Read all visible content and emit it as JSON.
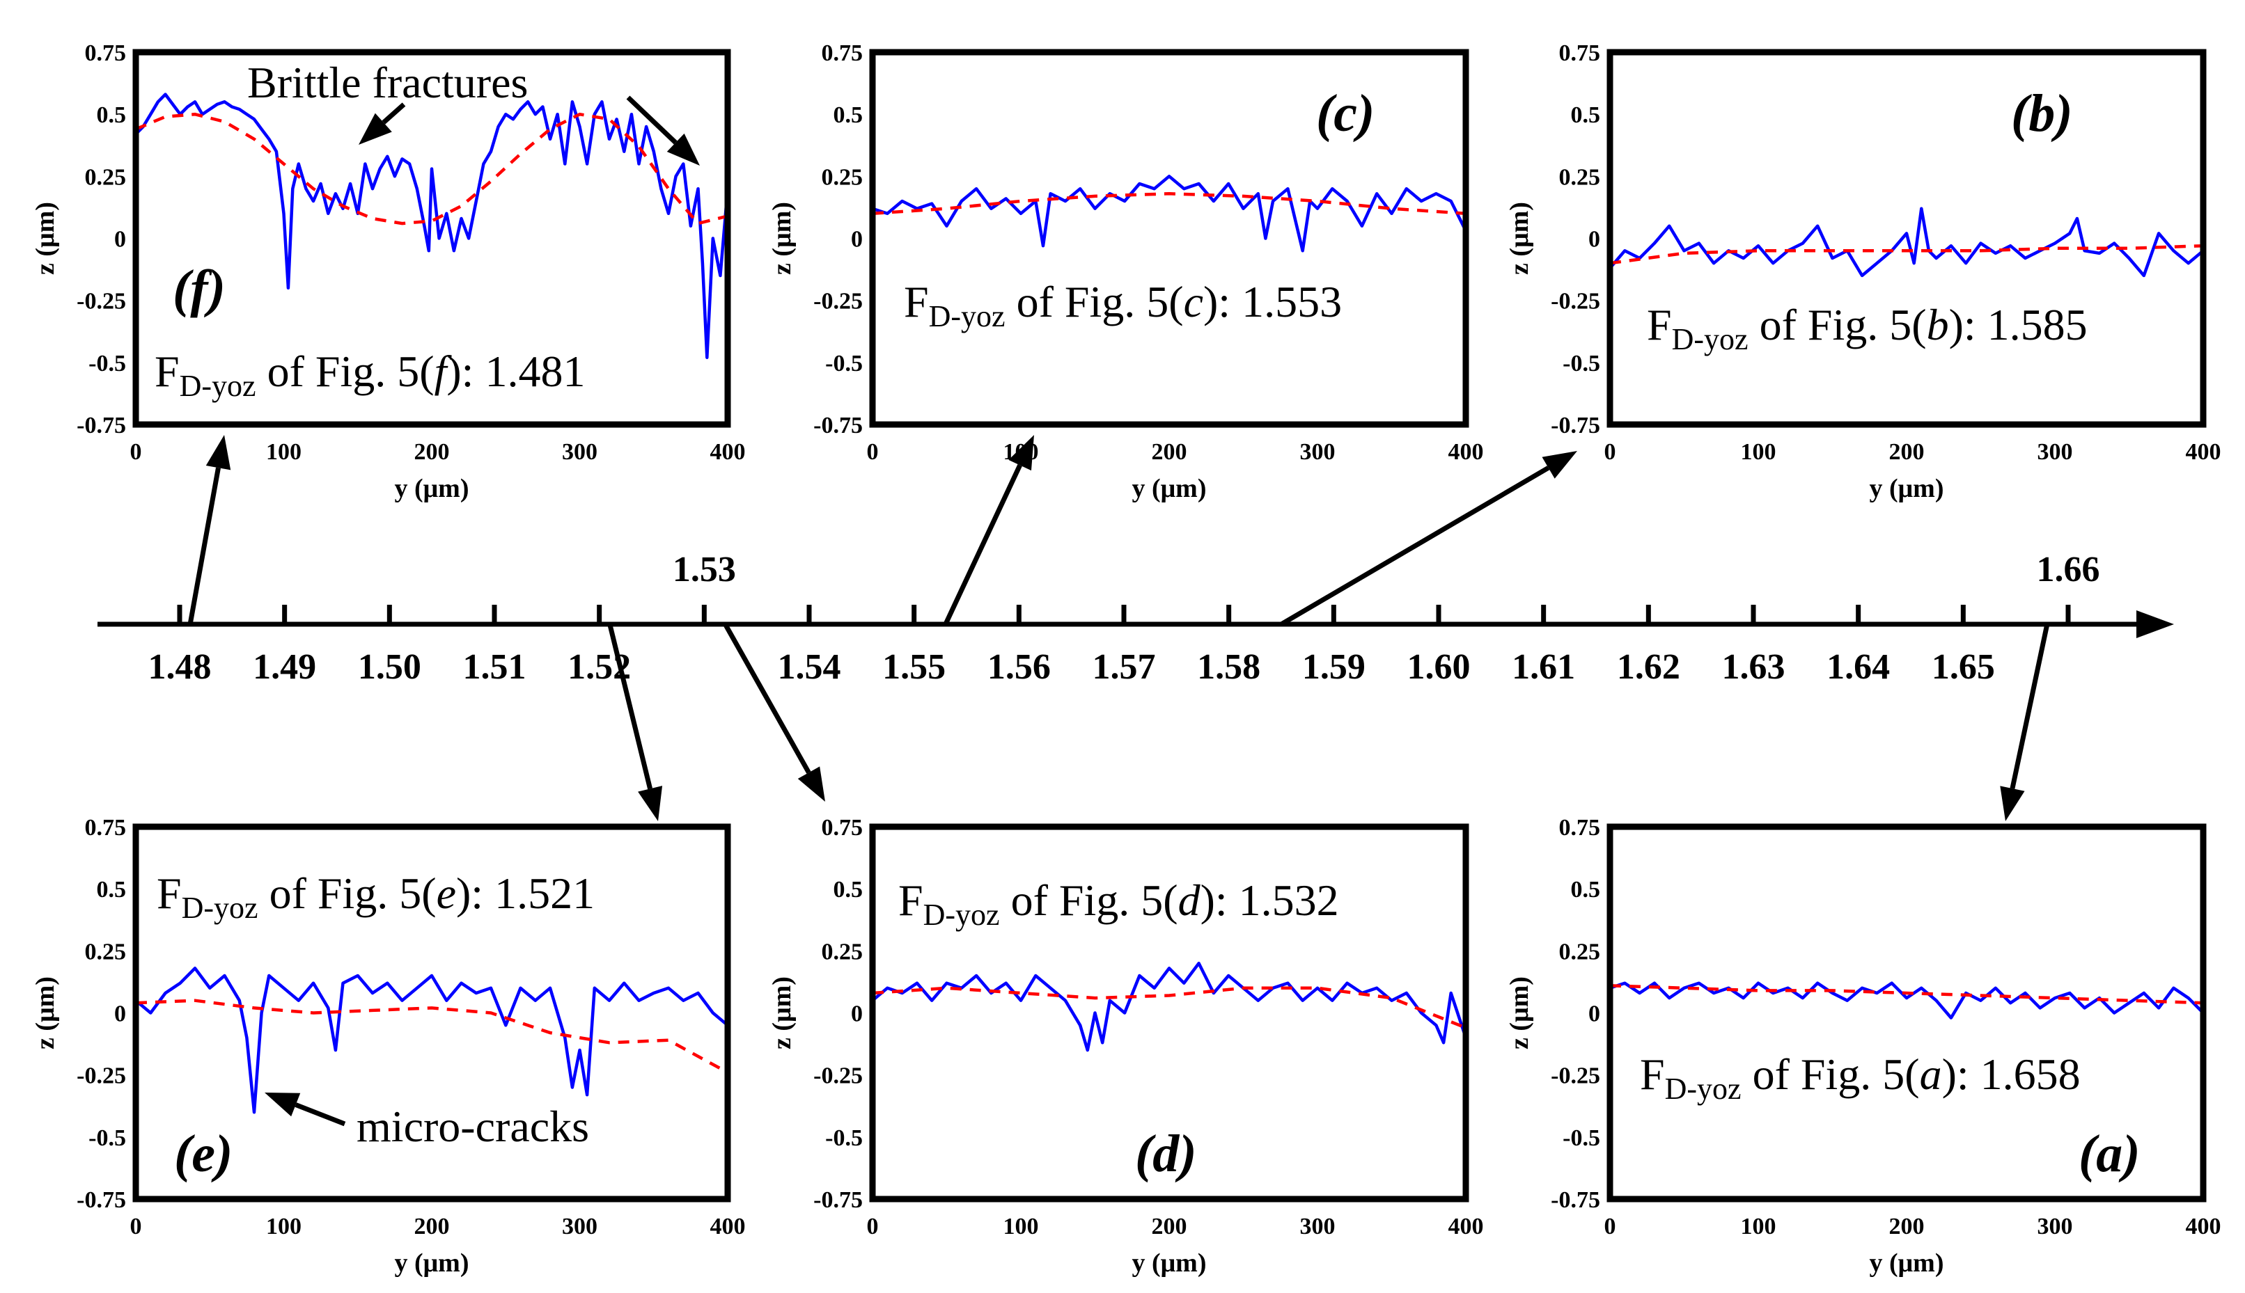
{
  "figure": {
    "colors": {
      "profile": "#0000ff",
      "fit": "#ff0000",
      "ink": "#000000"
    }
  },
  "annotations": {
    "brittle": "Brittle fractures",
    "microcracks": "micro-cracks"
  },
  "chart_data": [
    {
      "id": "f",
      "type": "line",
      "panel_letter": "(f)",
      "fd_label": {
        "sym": "F",
        "sub": "D-yoz",
        "text": " of Fig. 5(",
        "letter": "f",
        "close": "): ",
        "value": "1.481"
      },
      "xlabel": "y (μm)",
      "ylabel": "z (μm)",
      "xlim": [
        0,
        400
      ],
      "ylim": [
        -0.75,
        0.75
      ],
      "xticks": [
        "0",
        "100",
        "200",
        "300",
        "400"
      ],
      "yticks": [
        "0.75",
        "0.5",
        "0.25",
        "0",
        "-0.25",
        "-0.5",
        "-0.75"
      ],
      "series": [
        {
          "name": "profile",
          "x": [
            0,
            5,
            10,
            15,
            20,
            25,
            30,
            35,
            40,
            45,
            50,
            55,
            60,
            65,
            70,
            75,
            80,
            85,
            90,
            95,
            100,
            103,
            106,
            110,
            115,
            120,
            125,
            130,
            135,
            140,
            145,
            150,
            155,
            160,
            165,
            170,
            175,
            180,
            185,
            190,
            195,
            198,
            200,
            205,
            210,
            215,
            220,
            225,
            230,
            235,
            240,
            245,
            250,
            255,
            260,
            265,
            270,
            275,
            280,
            285,
            290,
            295,
            300,
            305,
            310,
            315,
            320,
            325,
            330,
            335,
            340,
            345,
            350,
            355,
            360,
            365,
            370,
            375,
            380,
            383,
            386,
            390,
            395,
            400
          ],
          "y": [
            0.42,
            0.45,
            0.5,
            0.55,
            0.58,
            0.54,
            0.5,
            0.53,
            0.55,
            0.5,
            0.52,
            0.54,
            0.55,
            0.53,
            0.52,
            0.5,
            0.48,
            0.44,
            0.4,
            0.35,
            0.1,
            -0.2,
            0.2,
            0.3,
            0.2,
            0.15,
            0.22,
            0.1,
            0.18,
            0.12,
            0.22,
            0.1,
            0.3,
            0.2,
            0.28,
            0.33,
            0.25,
            0.32,
            0.3,
            0.2,
            0.05,
            -0.05,
            0.28,
            0.0,
            0.1,
            -0.05,
            0.08,
            0.0,
            0.15,
            0.3,
            0.35,
            0.45,
            0.5,
            0.48,
            0.52,
            0.55,
            0.5,
            0.53,
            0.4,
            0.5,
            0.3,
            0.55,
            0.45,
            0.3,
            0.5,
            0.55,
            0.4,
            0.48,
            0.35,
            0.5,
            0.3,
            0.45,
            0.35,
            0.2,
            0.1,
            0.25,
            0.3,
            0.05,
            0.2,
            -0.1,
            -0.48,
            0.0,
            -0.15,
            0.2
          ]
        },
        {
          "name": "fit",
          "x": [
            0,
            20,
            40,
            60,
            80,
            100,
            120,
            140,
            160,
            180,
            200,
            220,
            240,
            260,
            280,
            300,
            320,
            340,
            360,
            380,
            400
          ],
          "y": [
            0.44,
            0.49,
            0.5,
            0.47,
            0.4,
            0.3,
            0.2,
            0.13,
            0.08,
            0.06,
            0.07,
            0.13,
            0.23,
            0.34,
            0.44,
            0.5,
            0.48,
            0.37,
            0.2,
            0.06,
            0.09
          ]
        }
      ]
    },
    {
      "id": "c",
      "type": "line",
      "panel_letter": "(c)",
      "fd_label": {
        "sym": "F",
        "sub": "D-yoz",
        "text": " of Fig. 5(",
        "letter": "c",
        "close": "): ",
        "value": "1.553"
      },
      "xlabel": "y (μm)",
      "ylabel": "z (μm)",
      "xlim": [
        0,
        400
      ],
      "ylim": [
        -0.75,
        0.75
      ],
      "xticks": [
        "0",
        "100",
        "200",
        "300",
        "400"
      ],
      "yticks": [
        "0.75",
        "0.5",
        "0.25",
        "0",
        "-0.25",
        "-0.5",
        "-0.75"
      ],
      "series": [
        {
          "name": "profile",
          "x": [
            0,
            10,
            20,
            30,
            40,
            50,
            60,
            70,
            80,
            90,
            100,
            110,
            115,
            120,
            130,
            140,
            150,
            160,
            170,
            180,
            190,
            200,
            210,
            220,
            230,
            240,
            250,
            260,
            265,
            270,
            280,
            290,
            295,
            300,
            310,
            320,
            330,
            340,
            350,
            360,
            370,
            380,
            390,
            400
          ],
          "y": [
            0.12,
            0.1,
            0.15,
            0.12,
            0.14,
            0.05,
            0.15,
            0.2,
            0.12,
            0.16,
            0.1,
            0.15,
            -0.03,
            0.18,
            0.15,
            0.2,
            0.12,
            0.18,
            0.15,
            0.22,
            0.2,
            0.25,
            0.2,
            0.22,
            0.15,
            0.22,
            0.12,
            0.18,
            0.0,
            0.15,
            0.2,
            -0.05,
            0.15,
            0.12,
            0.2,
            0.15,
            0.05,
            0.18,
            0.1,
            0.2,
            0.15,
            0.18,
            0.15,
            0.03
          ]
        },
        {
          "name": "fit",
          "x": [
            0,
            50,
            100,
            150,
            200,
            250,
            300,
            350,
            400
          ],
          "y": [
            0.1,
            0.12,
            0.15,
            0.17,
            0.18,
            0.17,
            0.15,
            0.12,
            0.1
          ]
        }
      ]
    },
    {
      "id": "b",
      "type": "line",
      "panel_letter": "(b)",
      "fd_label": {
        "sym": "F",
        "sub": "D-yoz",
        "text": " of Fig. 5(",
        "letter": "b",
        "close": "): ",
        "value": "1.585"
      },
      "xlabel": "y (μm)",
      "ylabel": "z (μm)",
      "xlim": [
        0,
        400
      ],
      "ylim": [
        -0.75,
        0.75
      ],
      "xticks": [
        "0",
        "100",
        "200",
        "300",
        "400"
      ],
      "yticks": [
        "0.75",
        "0.5",
        "0.25",
        "0",
        "-0.25",
        "-0.5",
        "-0.75"
      ],
      "series": [
        {
          "name": "profile",
          "x": [
            0,
            10,
            20,
            30,
            40,
            50,
            60,
            70,
            80,
            90,
            100,
            110,
            120,
            130,
            140,
            150,
            160,
            170,
            180,
            190,
            200,
            205,
            210,
            215,
            220,
            230,
            240,
            250,
            260,
            270,
            280,
            290,
            300,
            310,
            315,
            320,
            330,
            340,
            350,
            360,
            370,
            380,
            390,
            400
          ],
          "y": [
            -0.12,
            -0.05,
            -0.08,
            -0.02,
            0.05,
            -0.05,
            -0.02,
            -0.1,
            -0.05,
            -0.08,
            -0.03,
            -0.1,
            -0.05,
            -0.02,
            0.05,
            -0.08,
            -0.05,
            -0.15,
            -0.1,
            -0.05,
            0.02,
            -0.1,
            0.12,
            -0.05,
            -0.08,
            -0.03,
            -0.1,
            -0.02,
            -0.06,
            -0.03,
            -0.08,
            -0.05,
            -0.02,
            0.02,
            0.08,
            -0.05,
            -0.06,
            -0.02,
            -0.08,
            -0.15,
            0.02,
            -0.05,
            -0.1,
            -0.05
          ]
        },
        {
          "name": "fit",
          "x": [
            0,
            50,
            100,
            150,
            200,
            250,
            300,
            350,
            400
          ],
          "y": [
            -0.1,
            -0.06,
            -0.05,
            -0.05,
            -0.05,
            -0.05,
            -0.04,
            -0.04,
            -0.03
          ]
        }
      ]
    },
    {
      "id": "e",
      "type": "line",
      "panel_letter": "(e)",
      "fd_label": {
        "sym": "F",
        "sub": "D-yoz",
        "text": " of Fig. 5(",
        "letter": "e",
        "close": "): ",
        "value": "1.521"
      },
      "xlabel": "y (μm)",
      "ylabel": "z (μm)",
      "xlim": [
        0,
        400
      ],
      "ylim": [
        -0.75,
        0.75
      ],
      "xticks": [
        "0",
        "100",
        "200",
        "300",
        "400"
      ],
      "yticks": [
        "0.75",
        "0.5",
        "0.25",
        "0",
        "-0.25",
        "-0.5",
        "-0.75"
      ],
      "series": [
        {
          "name": "profile",
          "x": [
            0,
            10,
            20,
            30,
            40,
            50,
            60,
            70,
            75,
            80,
            85,
            90,
            100,
            110,
            120,
            130,
            135,
            140,
            150,
            160,
            170,
            180,
            190,
            200,
            210,
            220,
            230,
            240,
            250,
            260,
            270,
            280,
            290,
            295,
            300,
            305,
            310,
            320,
            330,
            340,
            350,
            360,
            370,
            380,
            390,
            400
          ],
          "y": [
            0.05,
            0.0,
            0.08,
            0.12,
            0.18,
            0.1,
            0.15,
            0.05,
            -0.1,
            -0.4,
            0.0,
            0.15,
            0.1,
            0.05,
            0.12,
            0.02,
            -0.15,
            0.12,
            0.15,
            0.08,
            0.12,
            0.05,
            0.1,
            0.15,
            0.05,
            0.12,
            0.08,
            0.1,
            -0.05,
            0.1,
            0.05,
            0.1,
            -0.1,
            -0.3,
            -0.15,
            -0.33,
            0.1,
            0.05,
            0.12,
            0.05,
            0.08,
            0.1,
            0.05,
            0.08,
            0.0,
            -0.05
          ]
        },
        {
          "name": "fit",
          "x": [
            0,
            40,
            80,
            120,
            160,
            200,
            240,
            280,
            320,
            360,
            400
          ],
          "y": [
            0.04,
            0.05,
            0.02,
            0.0,
            0.01,
            0.02,
            0.0,
            -0.08,
            -0.12,
            -0.11,
            -0.24
          ]
        }
      ]
    },
    {
      "id": "d",
      "type": "line",
      "panel_letter": "(d)",
      "fd_label": {
        "sym": "F",
        "sub": "D-yoz",
        "text": " of Fig. 5(",
        "letter": "d",
        "close": "): ",
        "value": "1.532"
      },
      "xlabel": "y (μm)",
      "ylabel": "z (μm)",
      "xlim": [
        0,
        400
      ],
      "ylim": [
        -0.75,
        0.75
      ],
      "xticks": [
        "0",
        "100",
        "200",
        "300",
        "400"
      ],
      "yticks": [
        "0.75",
        "0.5",
        "0.25",
        "0",
        "-0.25",
        "-0.5",
        "-0.75"
      ],
      "series": [
        {
          "name": "profile",
          "x": [
            0,
            10,
            20,
            30,
            40,
            50,
            60,
            70,
            80,
            90,
            100,
            110,
            120,
            130,
            140,
            145,
            150,
            155,
            160,
            170,
            180,
            190,
            200,
            210,
            220,
            230,
            240,
            250,
            260,
            270,
            280,
            290,
            300,
            310,
            320,
            330,
            340,
            350,
            360,
            370,
            380,
            385,
            390,
            400
          ],
          "y": [
            0.05,
            0.1,
            0.08,
            0.12,
            0.05,
            0.12,
            0.1,
            0.15,
            0.08,
            0.12,
            0.05,
            0.15,
            0.1,
            0.05,
            -0.05,
            -0.15,
            0.0,
            -0.12,
            0.05,
            0.0,
            0.15,
            0.1,
            0.18,
            0.12,
            0.2,
            0.08,
            0.15,
            0.1,
            0.05,
            0.1,
            0.12,
            0.05,
            0.1,
            0.05,
            0.12,
            0.08,
            0.1,
            0.05,
            0.08,
            0.0,
            -0.05,
            -0.12,
            0.08,
            -0.1
          ]
        },
        {
          "name": "fit",
          "x": [
            0,
            50,
            100,
            150,
            200,
            250,
            300,
            350,
            400
          ],
          "y": [
            0.08,
            0.1,
            0.08,
            0.06,
            0.07,
            0.1,
            0.1,
            0.06,
            -0.06
          ]
        }
      ]
    },
    {
      "id": "a",
      "type": "line",
      "panel_letter": "(a)",
      "fd_label": {
        "sym": "F",
        "sub": "D-yoz",
        "text": " of Fig. 5(",
        "letter": "a",
        "close": "): ",
        "value": "1.658"
      },
      "xlabel": "y (μm)",
      "ylabel": "z (μm)",
      "xlim": [
        0,
        400
      ],
      "ylim": [
        -0.75,
        0.75
      ],
      "xticks": [
        "0",
        "100",
        "200",
        "300",
        "400"
      ],
      "yticks": [
        "0.75",
        "0.5",
        "0.25",
        "0",
        "-0.25",
        "-0.5",
        "-0.75"
      ],
      "series": [
        {
          "name": "profile",
          "x": [
            0,
            10,
            20,
            30,
            40,
            50,
            60,
            70,
            80,
            90,
            100,
            110,
            120,
            130,
            140,
            150,
            160,
            170,
            180,
            190,
            200,
            210,
            220,
            230,
            240,
            250,
            260,
            270,
            280,
            290,
            300,
            310,
            320,
            330,
            340,
            350,
            360,
            370,
            380,
            390,
            400
          ],
          "y": [
            0.1,
            0.12,
            0.08,
            0.12,
            0.06,
            0.1,
            0.12,
            0.08,
            0.1,
            0.06,
            0.12,
            0.08,
            0.1,
            0.06,
            0.12,
            0.08,
            0.05,
            0.1,
            0.08,
            0.12,
            0.06,
            0.1,
            0.05,
            -0.02,
            0.08,
            0.05,
            0.1,
            0.04,
            0.08,
            0.02,
            0.06,
            0.08,
            0.02,
            0.06,
            0.0,
            0.04,
            0.08,
            0.02,
            0.1,
            0.06,
            0.0
          ]
        },
        {
          "name": "fit",
          "x": [
            0,
            50,
            100,
            150,
            200,
            250,
            300,
            350,
            400
          ],
          "y": [
            0.11,
            0.1,
            0.09,
            0.09,
            0.08,
            0.07,
            0.06,
            0.05,
            0.04
          ]
        }
      ]
    },
    {
      "id": "timeline",
      "type": "number-line",
      "ticks": [
        "1.48",
        "1.49",
        "1.50",
        "1.51",
        "1.52",
        "1.53",
        "1.54",
        "1.55",
        "1.56",
        "1.57",
        "1.58",
        "1.59",
        "1.60",
        "1.61",
        "1.62",
        "1.63",
        "1.64",
        "1.65",
        "1.66"
      ],
      "above": [
        "1.53",
        "1.66"
      ],
      "markers": [
        {
          "value": 1.481,
          "panel": "f"
        },
        {
          "value": 1.553,
          "panel": "c"
        },
        {
          "value": 1.585,
          "panel": "b"
        },
        {
          "value": 1.521,
          "panel": "e"
        },
        {
          "value": 1.532,
          "panel": "d"
        },
        {
          "value": 1.658,
          "panel": "a"
        }
      ]
    }
  ]
}
